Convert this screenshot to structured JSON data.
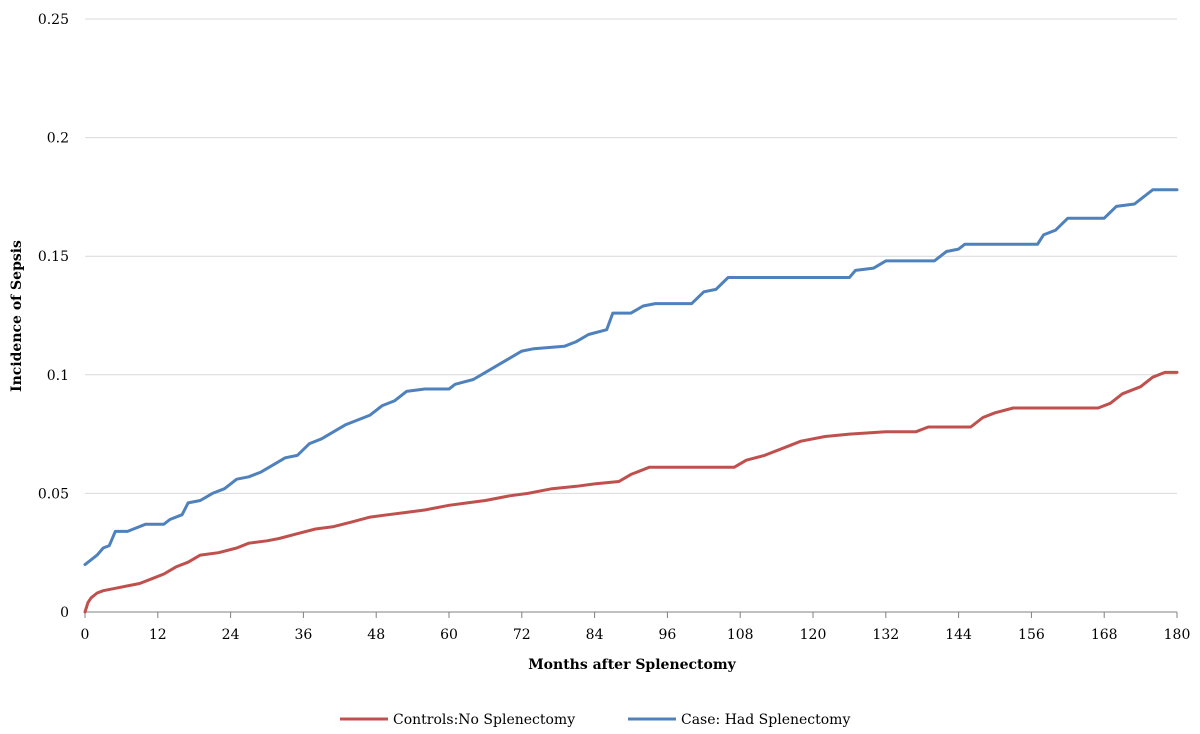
{
  "chart_data": {
    "type": "line",
    "xlabel": "Months after Splenectomy",
    "ylabel": "Incidence of Sepsis",
    "xlim": [
      0,
      180
    ],
    "ylim": [
      0,
      0.25
    ],
    "x_ticks": [
      0,
      12,
      24,
      36,
      48,
      60,
      72,
      84,
      96,
      108,
      120,
      132,
      144,
      156,
      168,
      180
    ],
    "y_ticks": [
      0,
      0.05,
      0.1,
      0.15,
      0.2,
      0.25
    ],
    "y_tick_labels": [
      "0",
      "0.05",
      "0.1",
      "0.15",
      "0.2",
      "0.25"
    ],
    "grid": "horizontal",
    "legend_position": "bottom",
    "series": [
      {
        "name": "Controls:No Splenectomy",
        "color": "#c0504d",
        "points": [
          [
            0,
            0.0
          ],
          [
            0.5,
            0.004
          ],
          [
            1,
            0.006
          ],
          [
            2,
            0.008
          ],
          [
            3,
            0.009
          ],
          [
            5,
            0.01
          ],
          [
            7,
            0.011
          ],
          [
            9,
            0.012
          ],
          [
            11,
            0.014
          ],
          [
            13,
            0.016
          ],
          [
            15,
            0.019
          ],
          [
            17,
            0.021
          ],
          [
            19,
            0.024
          ],
          [
            22,
            0.025
          ],
          [
            25,
            0.027
          ],
          [
            27,
            0.029
          ],
          [
            30,
            0.03
          ],
          [
            32,
            0.031
          ],
          [
            35,
            0.033
          ],
          [
            38,
            0.035
          ],
          [
            41,
            0.036
          ],
          [
            44,
            0.038
          ],
          [
            47,
            0.04
          ],
          [
            50,
            0.041
          ],
          [
            53,
            0.042
          ],
          [
            56,
            0.043
          ],
          [
            60,
            0.045
          ],
          [
            63,
            0.046
          ],
          [
            66,
            0.047
          ],
          [
            70,
            0.049
          ],
          [
            73,
            0.05
          ],
          [
            77,
            0.052
          ],
          [
            81,
            0.053
          ],
          [
            84,
            0.054
          ],
          [
            88,
            0.055
          ],
          [
            90,
            0.058
          ],
          [
            93,
            0.061
          ],
          [
            100,
            0.061
          ],
          [
            107,
            0.061
          ],
          [
            109,
            0.064
          ],
          [
            112,
            0.066
          ],
          [
            115,
            0.069
          ],
          [
            118,
            0.072
          ],
          [
            122,
            0.074
          ],
          [
            126,
            0.075
          ],
          [
            132,
            0.076
          ],
          [
            137,
            0.076
          ],
          [
            139,
            0.078
          ],
          [
            146,
            0.078
          ],
          [
            148,
            0.082
          ],
          [
            150,
            0.084
          ],
          [
            153,
            0.086
          ],
          [
            162,
            0.086
          ],
          [
            167,
            0.086
          ],
          [
            169,
            0.088
          ],
          [
            171,
            0.092
          ],
          [
            174,
            0.095
          ],
          [
            176,
            0.099
          ],
          [
            178,
            0.101
          ],
          [
            180,
            0.101
          ]
        ]
      },
      {
        "name": "Case: Had Splenectomy",
        "color": "#4f81bd",
        "points": [
          [
            0,
            0.02
          ],
          [
            1,
            0.022
          ],
          [
            2,
            0.024
          ],
          [
            3,
            0.027
          ],
          [
            4,
            0.028
          ],
          [
            5,
            0.034
          ],
          [
            7,
            0.034
          ],
          [
            8,
            0.035
          ],
          [
            10,
            0.037
          ],
          [
            13,
            0.037
          ],
          [
            14,
            0.039
          ],
          [
            16,
            0.041
          ],
          [
            17,
            0.046
          ],
          [
            19,
            0.047
          ],
          [
            21,
            0.05
          ],
          [
            23,
            0.052
          ],
          [
            25,
            0.056
          ],
          [
            27,
            0.057
          ],
          [
            29,
            0.059
          ],
          [
            31,
            0.062
          ],
          [
            33,
            0.065
          ],
          [
            35,
            0.066
          ],
          [
            37,
            0.071
          ],
          [
            39,
            0.073
          ],
          [
            41,
            0.076
          ],
          [
            43,
            0.079
          ],
          [
            45,
            0.081
          ],
          [
            47,
            0.083
          ],
          [
            49,
            0.087
          ],
          [
            51,
            0.089
          ],
          [
            53,
            0.093
          ],
          [
            56,
            0.094
          ],
          [
            60,
            0.094
          ],
          [
            61,
            0.096
          ],
          [
            64,
            0.098
          ],
          [
            66,
            0.101
          ],
          [
            68,
            0.104
          ],
          [
            70,
            0.107
          ],
          [
            72,
            0.11
          ],
          [
            74,
            0.111
          ],
          [
            79,
            0.112
          ],
          [
            81,
            0.114
          ],
          [
            83,
            0.117
          ],
          [
            86,
            0.119
          ],
          [
            87,
            0.126
          ],
          [
            90,
            0.126
          ],
          [
            92,
            0.129
          ],
          [
            94,
            0.13
          ],
          [
            100,
            0.13
          ],
          [
            102,
            0.135
          ],
          [
            104,
            0.136
          ],
          [
            106,
            0.141
          ],
          [
            120,
            0.141
          ],
          [
            126,
            0.141
          ],
          [
            127,
            0.144
          ],
          [
            130,
            0.145
          ],
          [
            132,
            0.148
          ],
          [
            140,
            0.148
          ],
          [
            142,
            0.152
          ],
          [
            144,
            0.153
          ],
          [
            145,
            0.155
          ],
          [
            157,
            0.155
          ],
          [
            158,
            0.159
          ],
          [
            160,
            0.161
          ],
          [
            162,
            0.166
          ],
          [
            168,
            0.166
          ],
          [
            170,
            0.171
          ],
          [
            173,
            0.172
          ],
          [
            176,
            0.178
          ],
          [
            180,
            0.178
          ]
        ]
      }
    ]
  }
}
